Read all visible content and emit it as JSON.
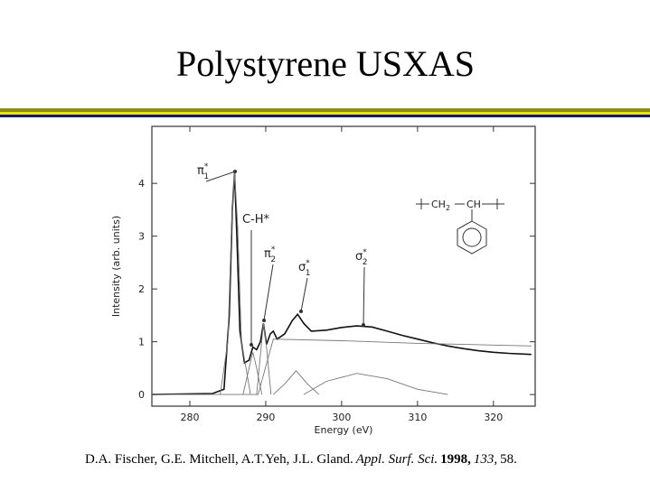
{
  "header": {
    "title": "Polystyrene USXAS"
  },
  "chart_data": {
    "type": "line",
    "xlabel": "Energy (eV)",
    "ylabel": "Intensity (arb. units)",
    "xlim": [
      275,
      325.5
    ],
    "ylim": [
      -0.22,
      5.08
    ],
    "xticks": [
      280,
      290,
      300,
      310,
      320
    ],
    "yticks": [
      0,
      1,
      2,
      3,
      4
    ],
    "color": "#222222",
    "series": [
      {
        "color": "#111111",
        "x": [
          275,
          283,
          284.5,
          285.2,
          285.6,
          285.9,
          286.2,
          286.6,
          287.2,
          287.8,
          288.3,
          288.8,
          289.3,
          289.7,
          290.1,
          290.6,
          291.0,
          291.5,
          292.5,
          293.5,
          294.2,
          295,
          296,
          298,
          300,
          302,
          304,
          306,
          308,
          310,
          312,
          314,
          316,
          318,
          320,
          322,
          325
        ],
        "values": [
          0,
          0.02,
          0.1,
          1.5,
          3.5,
          4.2,
          3.0,
          1.2,
          0.6,
          0.65,
          0.9,
          0.85,
          1.0,
          1.35,
          0.95,
          1.15,
          1.2,
          1.05,
          1.15,
          1.4,
          1.52,
          1.35,
          1.2,
          1.22,
          1.27,
          1.3,
          1.28,
          1.2,
          1.12,
          1.05,
          0.98,
          0.92,
          0.87,
          0.83,
          0.8,
          0.78,
          0.76
        ]
      },
      {
        "color": "#777777",
        "x": [
          275,
          289,
          291,
          300,
          310,
          325
        ],
        "values": [
          0,
          0,
          1.05,
          1.02,
          0.97,
          0.92
        ]
      },
      {
        "color": "#777777",
        "x": [
          284,
          285,
          285.5,
          285.9,
          286.3,
          286.8,
          288
        ],
        "values": [
          0,
          1,
          3.2,
          4.2,
          3.2,
          1,
          0
        ]
      },
      {
        "color": "#777777",
        "x": [
          287,
          287.8,
          288.3,
          288.8,
          289.5
        ],
        "values": [
          0,
          0.5,
          0.8,
          0.5,
          0
        ]
      },
      {
        "color": "#777777",
        "x": [
          288.8,
          289.4,
          289.7,
          290.1,
          290.7
        ],
        "values": [
          0,
          0.9,
          1.35,
          0.9,
          0
        ]
      },
      {
        "color": "#777777",
        "x": [
          291,
          292.5,
          294,
          295.5,
          297
        ],
        "values": [
          0,
          0.2,
          0.45,
          0.2,
          0
        ]
      },
      {
        "color": "#777777",
        "x": [
          295,
          298,
          302,
          306,
          310,
          314
        ],
        "values": [
          0,
          0.25,
          0.4,
          0.3,
          0.1,
          0
        ]
      }
    ],
    "annotations": [
      {
        "text": "π",
        "sub": "1",
        "sup": "*"
      },
      {
        "text": "C-H*"
      },
      {
        "text": "π",
        "sub": "2",
        "sup": "*"
      },
      {
        "text": "σ",
        "sub": "1",
        "sup": "*"
      },
      {
        "text": "σ",
        "sub": "2",
        "sup": "*"
      }
    ],
    "structure": {
      "group1": "CH",
      "group1_sub": "2",
      "group2": "CH"
    }
  },
  "citation": {
    "authors": "D.A. Fischer, G.E. Mitchell, A.T.Yeh, J.L. Gland.",
    "journal": "Appl. Surf. Sci.",
    "year": "1998,",
    "volume": "133,",
    "page": "58."
  }
}
